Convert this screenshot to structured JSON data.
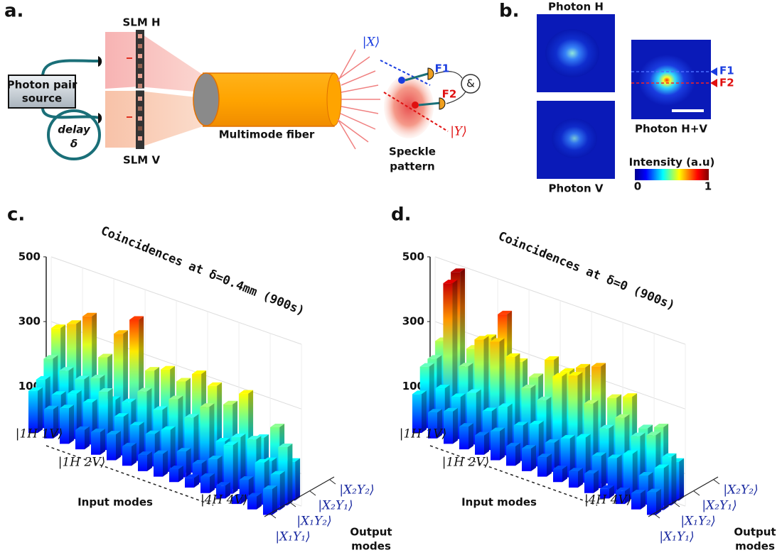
{
  "panels": {
    "a": {
      "label": "a.",
      "slm_h": "SLM H",
      "slm_v": "SLM V",
      "source": [
        "Photon pair",
        "source"
      ],
      "delay": [
        "delay",
        "δ"
      ],
      "fiber": "Multimode fiber",
      "x_state": "|X⟩",
      "y_state": "|Y⟩",
      "f1": "F1",
      "f2": "F2",
      "and": "&",
      "speckle": [
        "Speckle",
        "pattern"
      ]
    },
    "b": {
      "label": "b.",
      "photon_h": "Photon H",
      "photon_v": "Photon V",
      "photon_hv": "Photon H+V",
      "f1": "F1",
      "f2": "F2",
      "colorbar_title": "Intensity (a.u)",
      "colorbar_min": 0,
      "colorbar_max": 1
    }
  },
  "chart_data": [
    {
      "type": "bar3d",
      "panel_label": "c.",
      "title": "Coincidences at δ=0.4mm (900s)",
      "categories": [
        "|1H 1V⟩",
        "|1H 2V⟩",
        null,
        null,
        null,
        null,
        null,
        null,
        null,
        null,
        null,
        null,
        null,
        null,
        null,
        "|4H 4V⟩"
      ],
      "x_label": "Input modes",
      "z_label": [
        "Output",
        "modes"
      ],
      "colormap": "jet",
      "grid": true,
      "ylim": [
        0,
        500
      ],
      "yticks": [
        0,
        100,
        300,
        500
      ],
      "series": [
        {
          "name": "|X₁Y₁⟩",
          "values": [
            130,
            90,
            110,
            60,
            70,
            80,
            60,
            50,
            70,
            40,
            30,
            50,
            40,
            20,
            40,
            80
          ]
        },
        {
          "name": "|X₁Y₂⟩",
          "values": [
            150,
            120,
            140,
            130,
            180,
            120,
            110,
            100,
            130,
            80,
            60,
            90,
            150,
            60,
            130,
            110
          ]
        },
        {
          "name": "|X₂Y₁⟩",
          "values": [
            200,
            180,
            170,
            190,
            140,
            150,
            200,
            160,
            210,
            170,
            220,
            130,
            160,
            170,
            120,
            180
          ]
        },
        {
          "name": "|X₂Y₂⟩",
          "values": [
            280,
            310,
            350,
            240,
            330,
            390,
            250,
            270,
            250,
            290,
            270,
            230,
            280,
            160,
            210,
            120
          ]
        }
      ]
    },
    {
      "type": "bar3d",
      "panel_label": "d.",
      "title": "Coincidences at δ=0 (900s)",
      "categories": [
        "|1H 1V⟩",
        "|1H 2V⟩",
        null,
        null,
        null,
        null,
        null,
        null,
        null,
        null,
        null,
        null,
        null,
        null,
        null,
        "|4H 4V⟩"
      ],
      "x_label": "Input modes",
      "z_label": [
        "Output",
        "modes"
      ],
      "colormap": "jet",
      "grid": true,
      "ylim": [
        0,
        500
      ],
      "yticks": [
        0,
        100,
        300,
        500
      ],
      "series": [
        {
          "name": "|X₁Y₁⟩",
          "values": [
            120,
            80,
            100,
            70,
            60,
            90,
            60,
            70,
            60,
            40,
            50,
            60,
            30,
            40,
            50,
            70
          ]
        },
        {
          "name": "|X₁Y₂⟩",
          "values": [
            190,
            140,
            130,
            160,
            120,
            150,
            110,
            130,
            90,
            120,
            140,
            100,
            110,
            140,
            90,
            130
          ]
        },
        {
          "name": "|X₂Y₁⟩",
          "values": [
            200,
            450,
            210,
            310,
            320,
            290,
            210,
            190,
            280,
            300,
            230,
            170,
            220,
            180,
            200,
            150
          ]
        },
        {
          "name": "|X₂Y₂⟩",
          "values": [
            240,
            470,
            250,
            300,
            390,
            260,
            230,
            300,
            280,
            310,
            330,
            250,
            270,
            190,
            210,
            120
          ]
        }
      ]
    }
  ]
}
